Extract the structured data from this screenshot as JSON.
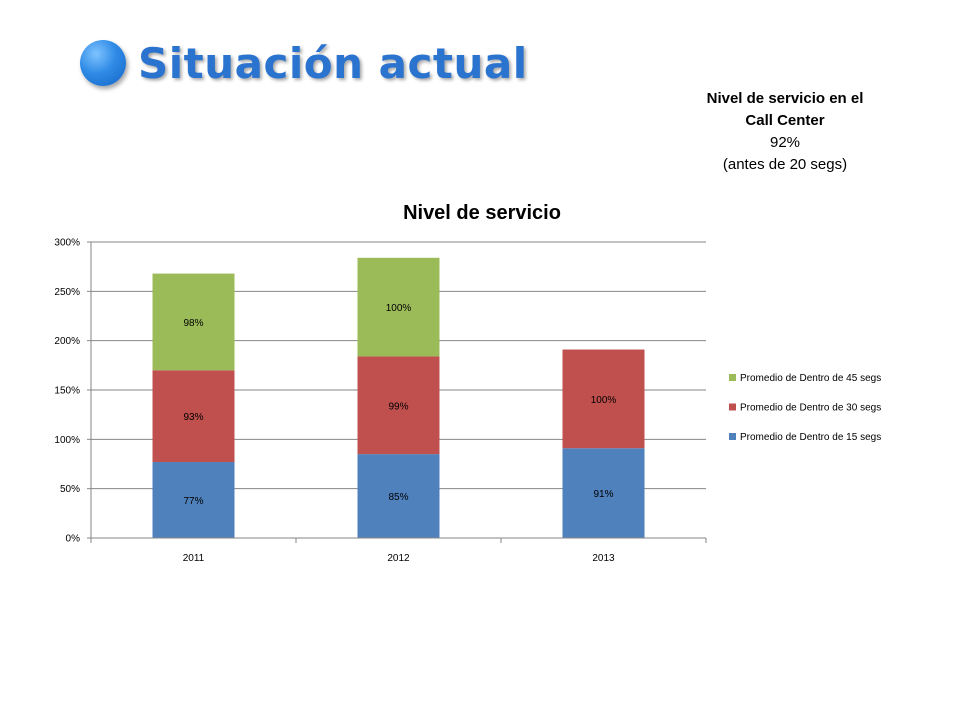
{
  "slide": {
    "title": "Situación actual"
  },
  "info": {
    "line1": "Nivel de servicio en el",
    "line2": "Call Center",
    "value": "92%",
    "note": "(antes de 20 segs)"
  },
  "colors": {
    "accent": "#2a73cf",
    "series15": "#4f81bd",
    "series30": "#c0504d",
    "series45": "#9bbb59"
  },
  "chart_data": {
    "type": "bar",
    "stacked": true,
    "title": "Nivel de servicio",
    "xlabel": "",
    "ylabel": "",
    "ylim": [
      0,
      300
    ],
    "yticks": [
      0,
      50,
      100,
      150,
      200,
      250,
      300
    ],
    "ytick_labels": [
      "0%",
      "50%",
      "100%",
      "150%",
      "200%",
      "250%",
      "300%"
    ],
    "grid": true,
    "legend_position": "right",
    "categories": [
      "2011",
      "2012",
      "2013"
    ],
    "series": [
      {
        "name": "Promedio de Dentro de 15 segs",
        "color": "#4f81bd",
        "values": [
          77,
          85,
          91
        ],
        "labels": [
          "77%",
          "85%",
          "91%"
        ]
      },
      {
        "name": "Promedio de Dentro de 30 segs",
        "color": "#c0504d",
        "values": [
          93,
          99,
          100
        ],
        "labels": [
          "93%",
          "99%",
          "100%"
        ]
      },
      {
        "name": "Promedio de Dentro de 45 segs",
        "color": "#9bbb59",
        "values": [
          98,
          100,
          null
        ],
        "labels": [
          "98%",
          "100%",
          null
        ]
      }
    ]
  }
}
